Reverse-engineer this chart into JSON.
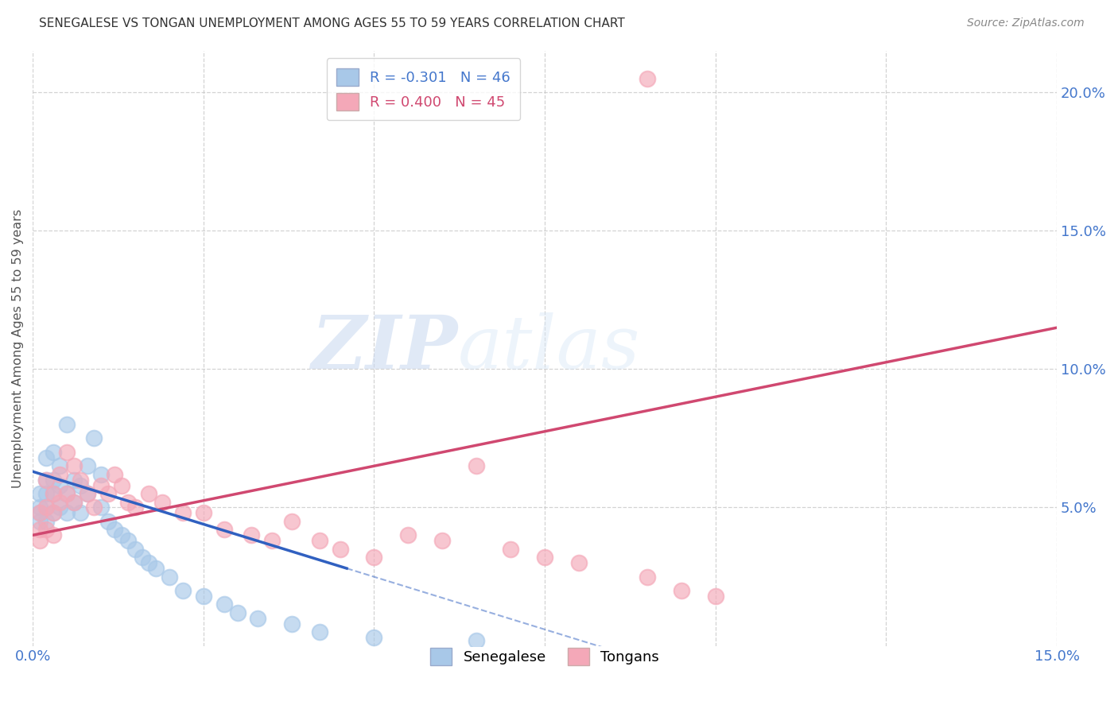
{
  "title": "SENEGALESE VS TONGAN UNEMPLOYMENT AMONG AGES 55 TO 59 YEARS CORRELATION CHART",
  "source": "Source: ZipAtlas.com",
  "ylabel": "Unemployment Among Ages 55 to 59 years",
  "xlim": [
    0.0,
    0.15
  ],
  "ylim": [
    0.0,
    0.215
  ],
  "x_ticks": [
    0.0,
    0.025,
    0.05,
    0.075,
    0.1,
    0.125,
    0.15
  ],
  "x_tick_labels": [
    "0.0%",
    "",
    "",
    "",
    "",
    "",
    "15.0%"
  ],
  "y_ticks_right": [
    0.05,
    0.1,
    0.15,
    0.2
  ],
  "y_tick_labels_right": [
    "5.0%",
    "10.0%",
    "15.0%",
    "20.0%"
  ],
  "watermark_zip": "ZIP",
  "watermark_atlas": "atlas",
  "legend_blue_r": "-0.301",
  "legend_blue_n": "46",
  "legend_pink_r": "0.400",
  "legend_pink_n": "45",
  "blue_color": "#a8c8e8",
  "pink_color": "#f4a8b8",
  "blue_line_color": "#3060c0",
  "pink_line_color": "#d04870",
  "background_color": "#ffffff",
  "grid_color": "#c8c8c8",
  "sen_x": [
    0.001,
    0.001,
    0.001,
    0.001,
    0.002,
    0.002,
    0.002,
    0.002,
    0.002,
    0.003,
    0.003,
    0.003,
    0.003,
    0.004,
    0.004,
    0.004,
    0.005,
    0.005,
    0.005,
    0.006,
    0.006,
    0.007,
    0.007,
    0.008,
    0.008,
    0.009,
    0.01,
    0.01,
    0.011,
    0.012,
    0.013,
    0.014,
    0.015,
    0.016,
    0.017,
    0.018,
    0.02,
    0.022,
    0.025,
    0.028,
    0.03,
    0.033,
    0.038,
    0.042,
    0.05,
    0.065
  ],
  "sen_y": [
    0.055,
    0.05,
    0.048,
    0.045,
    0.068,
    0.06,
    0.055,
    0.05,
    0.045,
    0.07,
    0.06,
    0.055,
    0.048,
    0.065,
    0.058,
    0.05,
    0.08,
    0.055,
    0.048,
    0.06,
    0.052,
    0.058,
    0.048,
    0.065,
    0.055,
    0.075,
    0.062,
    0.05,
    0.045,
    0.042,
    0.04,
    0.038,
    0.035,
    0.032,
    0.03,
    0.028,
    0.025,
    0.02,
    0.018,
    0.015,
    0.012,
    0.01,
    0.008,
    0.005,
    0.003,
    0.002
  ],
  "ton_x": [
    0.001,
    0.001,
    0.001,
    0.002,
    0.002,
    0.002,
    0.003,
    0.003,
    0.003,
    0.004,
    0.004,
    0.005,
    0.005,
    0.006,
    0.006,
    0.007,
    0.008,
    0.009,
    0.01,
    0.011,
    0.012,
    0.013,
    0.014,
    0.015,
    0.017,
    0.019,
    0.022,
    0.025,
    0.028,
    0.032,
    0.035,
    0.038,
    0.042,
    0.045,
    0.05,
    0.055,
    0.06,
    0.065,
    0.07,
    0.075,
    0.08,
    0.09,
    0.095,
    0.1,
    0.09
  ],
  "ton_y": [
    0.048,
    0.042,
    0.038,
    0.06,
    0.05,
    0.042,
    0.055,
    0.048,
    0.04,
    0.062,
    0.052,
    0.07,
    0.055,
    0.065,
    0.052,
    0.06,
    0.055,
    0.05,
    0.058,
    0.055,
    0.062,
    0.058,
    0.052,
    0.05,
    0.055,
    0.052,
    0.048,
    0.048,
    0.042,
    0.04,
    0.038,
    0.045,
    0.038,
    0.035,
    0.032,
    0.04,
    0.038,
    0.065,
    0.035,
    0.032,
    0.03,
    0.025,
    0.02,
    0.018,
    0.205
  ],
  "blue_line_x": [
    0.0,
    0.046
  ],
  "blue_line_solid_end": 0.046,
  "blue_line_dashed_end": 0.13,
  "blue_line_start_y": 0.063,
  "blue_line_end_y_solid": 0.028,
  "pink_line_x": [
    0.0,
    0.15
  ],
  "pink_line_start_y": 0.04,
  "pink_line_end_y": 0.115
}
